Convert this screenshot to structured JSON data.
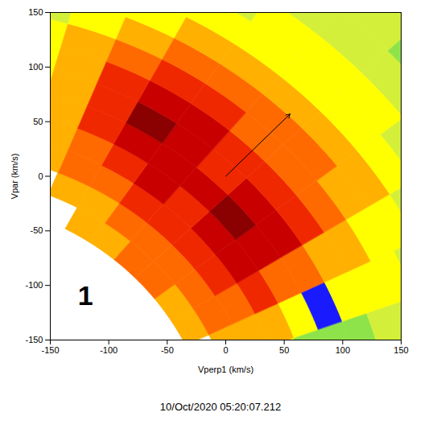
{
  "chart_data": {
    "type": "heatmap",
    "x_label": "Vperp1 (km/s)",
    "y_label": "Vpar (km/s)",
    "xlim": [
      -150,
      150
    ],
    "ylim": [
      -150,
      150
    ],
    "xticks": [
      -150,
      -100,
      -50,
      0,
      50,
      100,
      150
    ],
    "yticks": [
      -150,
      -100,
      -50,
      0,
      50,
      100,
      150
    ],
    "caption": "10/Oct/2020 05:20:07.212",
    "annotations": [
      {
        "text": "1",
        "x": -120,
        "y": -110
      }
    ],
    "arrow": {
      "x": [
        0,
        55
      ],
      "y": [
        0,
        57
      ]
    },
    "cells": {
      "center": [
        -250,
        -260
      ],
      "radius_edges": [
        240,
        262,
        284,
        306,
        328,
        350,
        372,
        394,
        416,
        438,
        460,
        485,
        510,
        540,
        575
      ],
      "angle_edges": [
        8,
        14,
        20,
        26,
        32,
        38,
        44,
        50,
        56,
        62,
        68,
        74,
        80
      ],
      "values": [
        [
          null,
          null,
          null,
          6,
          6,
          7,
          7,
          6,
          6,
          null,
          null,
          null
        ],
        [
          null,
          null,
          6,
          7,
          7,
          7,
          7,
          7,
          6,
          6,
          null,
          null
        ],
        [
          null,
          5,
          6,
          7,
          8,
          8,
          8,
          8,
          7,
          7,
          6,
          null
        ],
        [
          null,
          5,
          6,
          8,
          9,
          9,
          8,
          9,
          8,
          7,
          6,
          5
        ],
        [
          null,
          3,
          5,
          7,
          9,
          10,
          9,
          9,
          9,
          8,
          6,
          5
        ],
        [
          null,
          3,
          0,
          7,
          9,
          9,
          8,
          9,
          10,
          8,
          6,
          5
        ],
        [
          4,
          3,
          5,
          6,
          8,
          8,
          8,
          9,
          9,
          8,
          6,
          5
        ],
        [
          3,
          4,
          5,
          6,
          7,
          7,
          7,
          8,
          8,
          7,
          6,
          5
        ],
        [
          3,
          4,
          5,
          5,
          6,
          7,
          7,
          7,
          7,
          6,
          5,
          4
        ],
        [
          3,
          3,
          4,
          5,
          6,
          6,
          6,
          6,
          6,
          5,
          5,
          4
        ],
        [
          3,
          3,
          4,
          4,
          5,
          5,
          5,
          5,
          5,
          5,
          4,
          4
        ],
        [
          null,
          3,
          3,
          4,
          4,
          5,
          5,
          5,
          4,
          4,
          4,
          3
        ],
        [
          null,
          3,
          3,
          3,
          4,
          4,
          4,
          4,
          4,
          3,
          3,
          null
        ],
        [
          null,
          null,
          3,
          3,
          3,
          3,
          4,
          4,
          3,
          3,
          3,
          null
        ]
      ],
      "zlim": [
        0,
        10
      ]
    }
  }
}
